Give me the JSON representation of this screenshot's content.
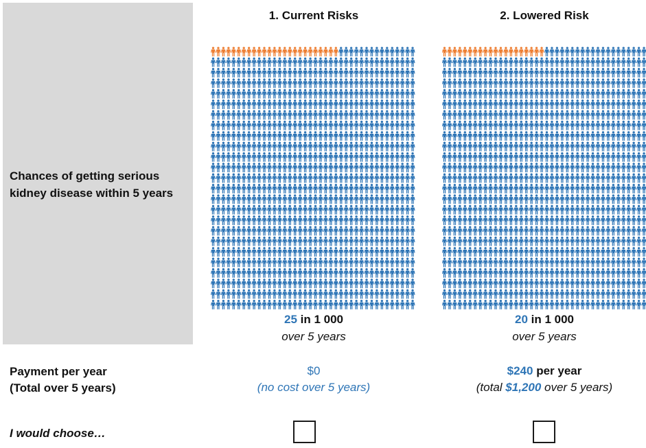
{
  "row_labels": {
    "risk": "Chances of getting serious kidney disease within 5 years",
    "payment_line1": "Payment per year",
    "payment_line2": "(Total over 5 years)",
    "choose": "I would choose…"
  },
  "options": [
    {
      "title": "1. Current Risks",
      "risk_count": "25",
      "risk_text": " in 1 000",
      "risk_period": "over 5 years",
      "affected": 25,
      "total": 1000,
      "payment_main": "$0",
      "payment_sub": "(no cost over 5 years)"
    },
    {
      "title": "2. Lowered Risk",
      "risk_count": "20",
      "risk_text": " in 1 000",
      "risk_period": "over 5 years",
      "affected": 20,
      "total": 1000,
      "payment_amount": "$240",
      "payment_suffix": " per year",
      "payment_sub_prefix": "(total ",
      "payment_sub_amount": "$1,200",
      "payment_sub_suffix": " over 5 years)"
    }
  ],
  "colors": {
    "affected": "#ed7d31",
    "unaffected": "#2e75b6",
    "panel": "#d9d9d9",
    "accent": "#2e75b6"
  },
  "icons": {
    "person": "person-icon"
  }
}
